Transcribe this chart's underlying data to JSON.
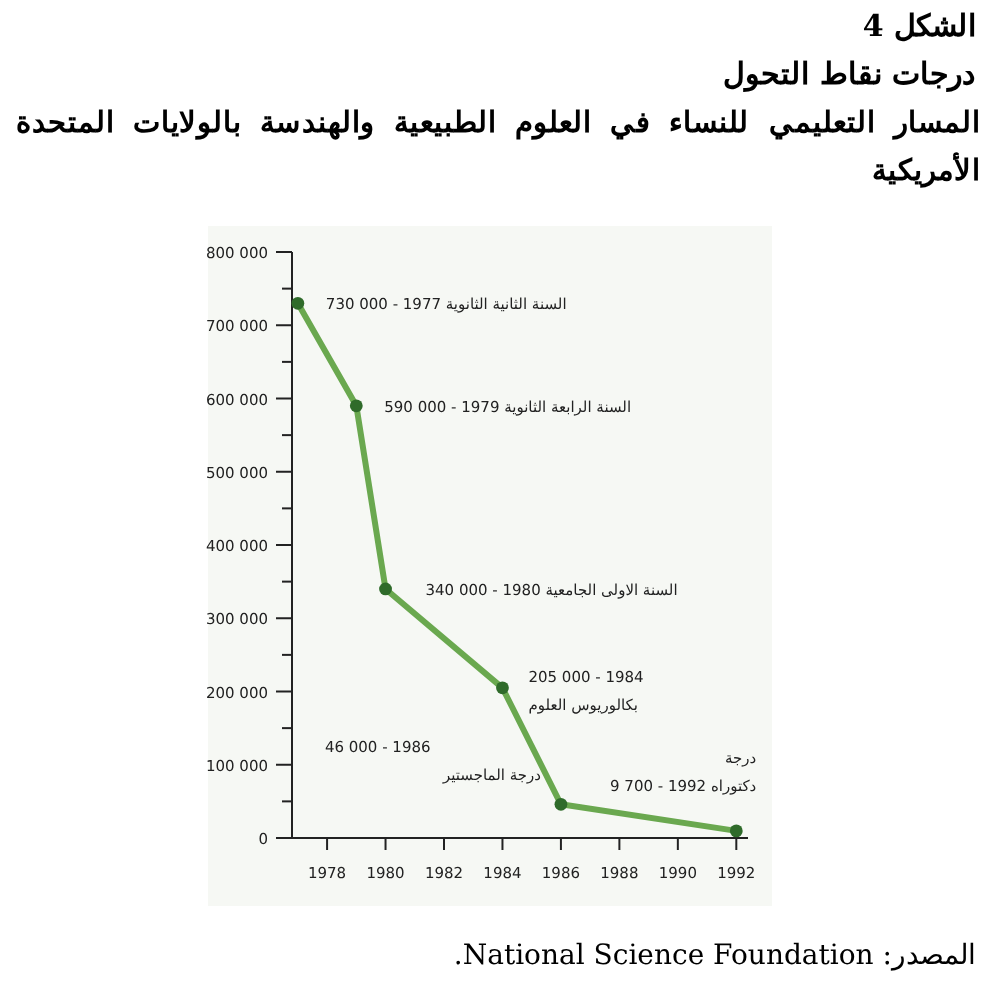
{
  "chart_data": {
    "type": "line",
    "title": "الشكل 4\nدرجات نقاط التحول",
    "subtitle": "المسار التعليمي للنساء في العلوم الطبيعية والهندسة بالولايات المتحدة الأمريكية",
    "x": [
      1977,
      1979,
      1980,
      1984,
      1986,
      1992
    ],
    "series": [
      {
        "color": "#6aa84f",
        "values": [
          730000,
          590000,
          340000,
          205000,
          46000,
          9700
        ]
      }
    ],
    "marker": "circle",
    "xlim": [
      1976.8,
      1992.4
    ],
    "xticks": [
      1978,
      1980,
      1982,
      1984,
      1986,
      1988,
      1990,
      1992
    ],
    "ylim": [
      0,
      800000
    ],
    "yticks": [
      {
        "value": 0,
        "label": "0"
      },
      {
        "value": 50000,
        "label": null
      },
      {
        "value": 100000,
        "label": "100 000"
      },
      {
        "value": 150000,
        "label": null
      },
      {
        "value": 200000,
        "label": "200 000"
      },
      {
        "value": 250000,
        "label": null
      },
      {
        "value": 300000,
        "label": "300 000"
      },
      {
        "value": 350000,
        "label": null
      },
      {
        "value": 400000,
        "label": "400 000"
      },
      {
        "value": 450000,
        "label": null
      },
      {
        "value": 500000,
        "label": "500 000"
      },
      {
        "value": 550000,
        "label": null
      },
      {
        "value": 600000,
        "label": "600 000"
      },
      {
        "value": 650000,
        "label": null
      },
      {
        "value": 700000,
        "label": "700 000"
      },
      {
        "value": 750000,
        "label": null
      },
      {
        "value": 800000,
        "label": "800 000"
      }
    ],
    "grid": false,
    "annotations": [
      {
        "text": "730 000 - 1977 السنة الثانية الثانوية",
        "x": 1977,
        "y": 730000
      },
      {
        "text": "590 000 - 1979 السنة الرابعة الثانوية",
        "x": 1979,
        "y": 590000
      },
      {
        "text": "340 000 - 1980 السنة الاولى الجامعية",
        "x": 1980,
        "y": 340000
      },
      {
        "text": "205 000 - 1984\nبكالوريوس العلوم",
        "x": 1984,
        "y": 205000
      },
      {
        "text": "46 000 - 1986\nدرجة الماجستير",
        "x": 1986,
        "y": 46000
      },
      {
        "text": "درجة\n9 700 - 1992 دكتوراه",
        "x": 1992,
        "y": 9700
      },
      "المصدر: National Science Foundation."
    ]
  }
}
